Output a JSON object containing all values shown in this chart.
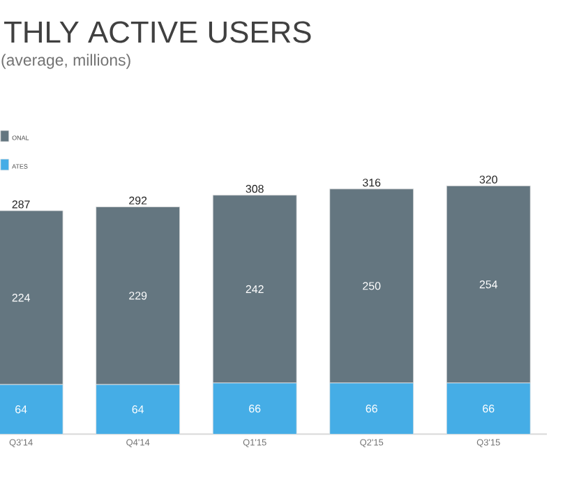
{
  "chart_data": {
    "type": "bar",
    "title": "THLY ACTIVE USERS",
    "subtitle": "(average, millions)",
    "categories": [
      "Q3'14",
      "Q4'14",
      "Q1'15",
      "Q2'15",
      "Q3'15"
    ],
    "series": [
      {
        "name": "ATES",
        "color": "#45ade6",
        "values": [
          64,
          64,
          66,
          66,
          66
        ]
      },
      {
        "name": "ONAL",
        "color": "#647680",
        "values": [
          224,
          229,
          242,
          250,
          254
        ]
      }
    ],
    "stacked": true,
    "data_labels": true,
    "totals": [
      "287",
      "292",
      "308",
      "316",
      "320"
    ],
    "legend": "top left"
  }
}
